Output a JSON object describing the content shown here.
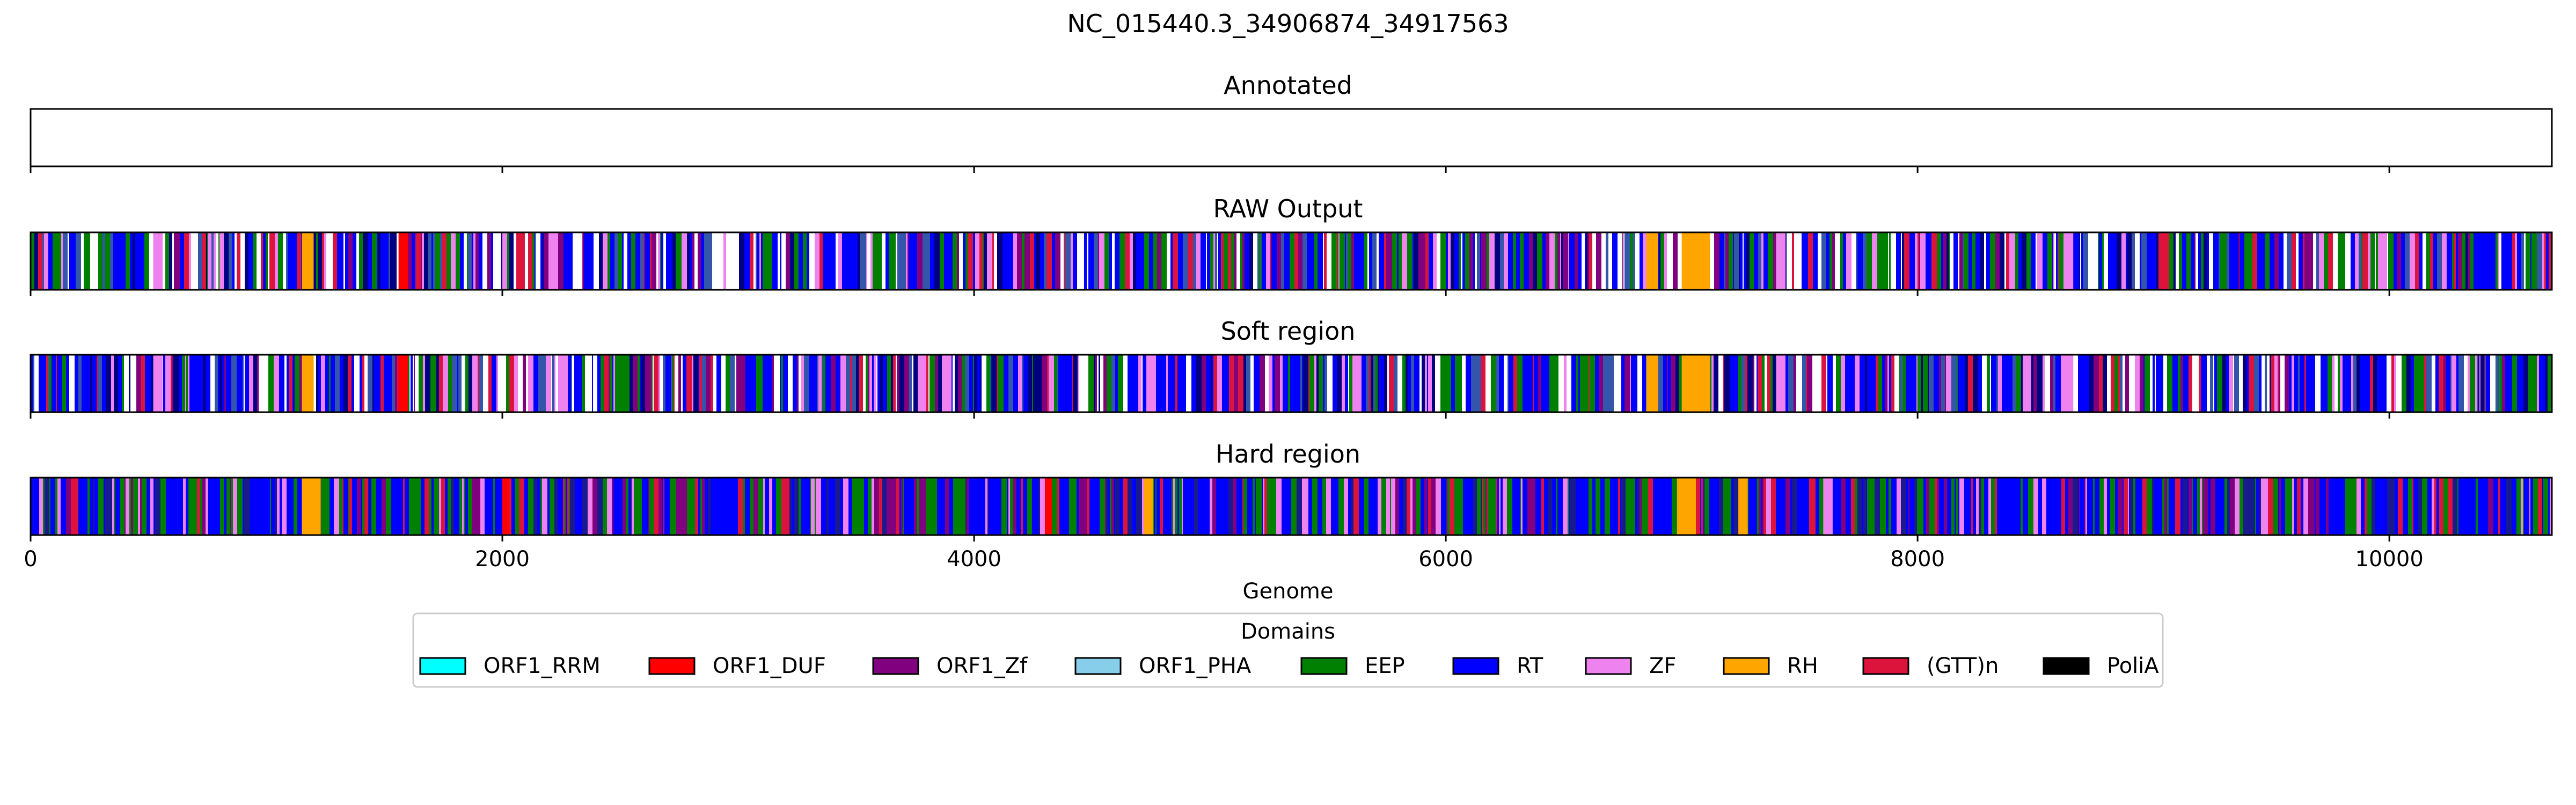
{
  "figure": {
    "title": "NC_015440.3_34906874_34917563"
  },
  "chart_data": {
    "type": "track",
    "title": "NC_015440.3_34906874_34917563",
    "xlabel": "Genome",
    "ylabel": "",
    "xlim": [
      0,
      10689
    ],
    "xticks": [
      0,
      2000,
      4000,
      6000,
      8000,
      10000
    ],
    "grid": false,
    "legend": {
      "title": "Domains",
      "placement": "lower-center",
      "entries": [
        {
          "name": "ORF1_RRM",
          "color": "#00FFFF"
        },
        {
          "name": "ORF1_DUF",
          "color": "#FF0000"
        },
        {
          "name": "ORF1_Zf",
          "color": "#800080"
        },
        {
          "name": "ORF1_PHA",
          "color": "#87CEEB"
        },
        {
          "name": "EEP",
          "color": "#008000"
        },
        {
          "name": "RT",
          "color": "#0000FF"
        },
        {
          "name": "ZF",
          "color": "#EE82EE"
        },
        {
          "name": "RH",
          "color": "#FFA500"
        },
        {
          "name": "(GTT)n",
          "color": "#DC143C"
        },
        {
          "name": "PoliA",
          "color": "#000000"
        }
      ]
    },
    "tracks": [
      {
        "name": "Annotated",
        "segments": []
      },
      {
        "name": "RAW Output",
        "segments": [
          {
            "start": 520,
            "end": 560,
            "domain": "ZF"
          },
          {
            "start": 1150,
            "end": 1200,
            "domain": "RH"
          },
          {
            "start": 1560,
            "end": 1600,
            "domain": "ORF1_DUF"
          },
          {
            "start": 6850,
            "end": 6900,
            "domain": "RH"
          },
          {
            "start": 7000,
            "end": 7120,
            "domain": "RH"
          },
          {
            "start": 7400,
            "end": 7440,
            "domain": "ZF"
          },
          {
            "start": 8620,
            "end": 8660,
            "domain": "ZF"
          }
        ]
      },
      {
        "name": "Soft region",
        "segments": [
          {
            "start": 520,
            "end": 560,
            "domain": "ZF"
          },
          {
            "start": 1150,
            "end": 1200,
            "domain": "RH"
          },
          {
            "start": 1560,
            "end": 1600,
            "domain": "ORF1_DUF"
          },
          {
            "start": 6850,
            "end": 6900,
            "domain": "RH"
          },
          {
            "start": 7000,
            "end": 7120,
            "domain": "RH"
          },
          {
            "start": 7400,
            "end": 7440,
            "domain": "ZF"
          },
          {
            "start": 8620,
            "end": 8660,
            "domain": "ZF"
          }
        ]
      },
      {
        "name": "Hard region",
        "segments": [
          {
            "start": 1150,
            "end": 1230,
            "domain": "RH"
          },
          {
            "start": 2000,
            "end": 2030,
            "domain": "ORF1_DUF"
          },
          {
            "start": 4300,
            "end": 4330,
            "domain": "ORF1_DUF"
          },
          {
            "start": 4720,
            "end": 4760,
            "domain": "RH"
          },
          {
            "start": 6980,
            "end": 7060,
            "domain": "RH"
          },
          {
            "start": 7240,
            "end": 7280,
            "domain": "RH"
          },
          {
            "start": 7600,
            "end": 7640,
            "domain": "ZF"
          }
        ]
      }
    ]
  }
}
